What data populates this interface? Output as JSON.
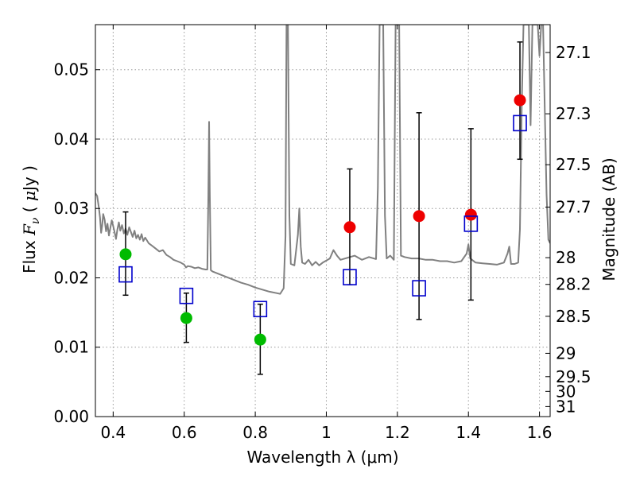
{
  "chart_data": {
    "type": "scatter",
    "xlabel": "Wavelength  λ (μm)",
    "ylabel_parts": [
      "Flux  ",
      "F",
      "ν",
      "  (  ",
      "μ",
      "Jy  )"
    ],
    "ylabel_right": "Magnitude (AB)",
    "xlim": [
      0.35,
      1.63
    ],
    "ylim": [
      0.0,
      0.0565
    ],
    "grid": true,
    "x_ticks": [
      0.4,
      0.6,
      0.8,
      1.0,
      1.2,
      1.4,
      1.6
    ],
    "x_tick_labels": [
      "0.4",
      "0.6",
      "0.8",
      "1",
      "1.2",
      "1.4",
      "1.6"
    ],
    "y_ticks": [
      0.0,
      0.01,
      0.02,
      0.03,
      0.04,
      0.05
    ],
    "y_tick_labels": [
      "0.00",
      "0.01",
      "0.02",
      "0.03",
      "0.04",
      "0.05"
    ],
    "right_ticks": [
      {
        "label": "27.1",
        "value": 27.1
      },
      {
        "label": "27.3",
        "value": 27.3
      },
      {
        "label": "27.5",
        "value": 27.5
      },
      {
        "label": "27.7",
        "value": 27.7
      },
      {
        "label": "28",
        "value": 28.0
      },
      {
        "label": "28.2",
        "value": 28.2
      },
      {
        "label": "28.5",
        "value": 28.5
      },
      {
        "label": "29",
        "value": 29.0
      },
      {
        "label": "29.5",
        "value": 29.5
      },
      {
        "label": "30",
        "value": 30.0
      },
      {
        "label": "31",
        "value": 31.0
      }
    ],
    "colors": {
      "spectrum": "#808080",
      "green": "#00bb00",
      "red": "#ee0000",
      "model": "#0000cc",
      "errorbar": "#000000",
      "grid": "#999999"
    },
    "spectrum": {
      "name": "template spectrum",
      "points": [
        [
          0.35,
          0.0322
        ],
        [
          0.355,
          0.0318
        ],
        [
          0.36,
          0.03
        ],
        [
          0.363,
          0.0287
        ],
        [
          0.366,
          0.0265
        ],
        [
          0.369,
          0.0275
        ],
        [
          0.372,
          0.0292
        ],
        [
          0.376,
          0.0284
        ],
        [
          0.38,
          0.0267
        ],
        [
          0.384,
          0.0278
        ],
        [
          0.388,
          0.0261
        ],
        [
          0.392,
          0.0272
        ],
        [
          0.396,
          0.0283
        ],
        [
          0.4,
          0.0275
        ],
        [
          0.404,
          0.0266
        ],
        [
          0.408,
          0.0256
        ],
        [
          0.412,
          0.027
        ],
        [
          0.416,
          0.028
        ],
        [
          0.42,
          0.0268
        ],
        [
          0.425,
          0.0276
        ],
        [
          0.43,
          0.0264
        ],
        [
          0.435,
          0.0271
        ],
        [
          0.44,
          0.0262
        ],
        [
          0.445,
          0.0273
        ],
        [
          0.45,
          0.0266
        ],
        [
          0.455,
          0.0259
        ],
        [
          0.46,
          0.0268
        ],
        [
          0.465,
          0.0257
        ],
        [
          0.47,
          0.0262
        ],
        [
          0.475,
          0.0255
        ],
        [
          0.48,
          0.0263
        ],
        [
          0.485,
          0.0253
        ],
        [
          0.49,
          0.0258
        ],
        [
          0.5,
          0.025
        ],
        [
          0.51,
          0.0246
        ],
        [
          0.52,
          0.0242
        ],
        [
          0.53,
          0.0238
        ],
        [
          0.54,
          0.024
        ],
        [
          0.55,
          0.0233
        ],
        [
          0.56,
          0.023
        ],
        [
          0.57,
          0.0226
        ],
        [
          0.58,
          0.0224
        ],
        [
          0.59,
          0.0222
        ],
        [
          0.6,
          0.0219
        ],
        [
          0.605,
          0.0215
        ],
        [
          0.61,
          0.0217
        ],
        [
          0.62,
          0.0216
        ],
        [
          0.63,
          0.0214
        ],
        [
          0.64,
          0.0215
        ],
        [
          0.65,
          0.0213
        ],
        [
          0.66,
          0.0212
        ],
        [
          0.665,
          0.0212
        ],
        [
          0.668,
          0.032
        ],
        [
          0.67,
          0.0425
        ],
        [
          0.672,
          0.032
        ],
        [
          0.675,
          0.0211
        ],
        [
          0.68,
          0.0209
        ],
        [
          0.7,
          0.0205
        ],
        [
          0.72,
          0.0201
        ],
        [
          0.74,
          0.0197
        ],
        [
          0.76,
          0.0193
        ],
        [
          0.78,
          0.019
        ],
        [
          0.8,
          0.0186
        ],
        [
          0.82,
          0.0183
        ],
        [
          0.84,
          0.018
        ],
        [
          0.86,
          0.0178
        ],
        [
          0.87,
          0.0177
        ],
        [
          0.88,
          0.0185
        ],
        [
          0.885,
          0.026
        ],
        [
          0.888,
          0.0565
        ],
        [
          0.892,
          0.0565
        ],
        [
          0.896,
          0.029
        ],
        [
          0.9,
          0.022
        ],
        [
          0.91,
          0.0218
        ],
        [
          0.915,
          0.024
        ],
        [
          0.92,
          0.0262
        ],
        [
          0.924,
          0.03
        ],
        [
          0.928,
          0.0245
        ],
        [
          0.932,
          0.0222
        ],
        [
          0.94,
          0.022
        ],
        [
          0.95,
          0.0226
        ],
        [
          0.96,
          0.0218
        ],
        [
          0.97,
          0.0223
        ],
        [
          0.98,
          0.0218
        ],
        [
          0.99,
          0.0222
        ],
        [
          1.0,
          0.0225
        ],
        [
          1.01,
          0.0228
        ],
        [
          1.02,
          0.024
        ],
        [
          1.03,
          0.0232
        ],
        [
          1.04,
          0.0226
        ],
        [
          1.06,
          0.0229
        ],
        [
          1.08,
          0.0232
        ],
        [
          1.1,
          0.0226
        ],
        [
          1.12,
          0.023
        ],
        [
          1.14,
          0.0227
        ],
        [
          1.145,
          0.033
        ],
        [
          1.15,
          0.0565
        ],
        [
          1.16,
          0.0565
        ],
        [
          1.165,
          0.029
        ],
        [
          1.17,
          0.0228
        ],
        [
          1.18,
          0.0232
        ],
        [
          1.19,
          0.0226
        ],
        [
          1.195,
          0.0565
        ],
        [
          1.2,
          0.0565
        ],
        [
          1.205,
          0.0565
        ],
        [
          1.21,
          0.0232
        ],
        [
          1.22,
          0.023
        ],
        [
          1.24,
          0.0228
        ],
        [
          1.26,
          0.0228
        ],
        [
          1.28,
          0.0226
        ],
        [
          1.3,
          0.0226
        ],
        [
          1.32,
          0.0224
        ],
        [
          1.34,
          0.0224
        ],
        [
          1.36,
          0.0222
        ],
        [
          1.38,
          0.0224
        ],
        [
          1.395,
          0.0235
        ],
        [
          1.4,
          0.0248
        ],
        [
          1.405,
          0.0228
        ],
        [
          1.42,
          0.0222
        ],
        [
          1.44,
          0.0221
        ],
        [
          1.46,
          0.022
        ],
        [
          1.48,
          0.0219
        ],
        [
          1.5,
          0.0222
        ],
        [
          1.51,
          0.0235
        ],
        [
          1.515,
          0.0245
        ],
        [
          1.52,
          0.022
        ],
        [
          1.53,
          0.022
        ],
        [
          1.54,
          0.0222
        ],
        [
          1.545,
          0.027
        ],
        [
          1.55,
          0.045
        ],
        [
          1.555,
          0.0565
        ],
        [
          1.57,
          0.0565
        ],
        [
          1.575,
          0.042
        ],
        [
          1.58,
          0.0565
        ],
        [
          1.595,
          0.0565
        ],
        [
          1.6,
          0.052
        ],
        [
          1.605,
          0.0565
        ],
        [
          1.61,
          0.0565
        ],
        [
          1.615,
          0.044
        ],
        [
          1.62,
          0.032
        ],
        [
          1.625,
          0.0255
        ],
        [
          1.63,
          0.025
        ]
      ]
    },
    "series": [
      {
        "name": "observed (green)",
        "color": "green",
        "points": [
          {
            "x": 0.435,
            "y": 0.0234,
            "err_lo": 0.0175,
            "err_hi": 0.0295
          },
          {
            "x": 0.606,
            "y": 0.0142,
            "err_lo": 0.0107,
            "err_hi": 0.0178
          },
          {
            "x": 0.814,
            "y": 0.0111,
            "err_lo": 0.0061,
            "err_hi": 0.0162
          }
        ]
      },
      {
        "name": "observed (red)",
        "color": "red",
        "points": [
          {
            "x": 1.066,
            "y": 0.0273,
            "err_lo": 0.019,
            "err_hi": 0.0357
          },
          {
            "x": 1.261,
            "y": 0.0289,
            "err_lo": 0.014,
            "err_hi": 0.0438
          },
          {
            "x": 1.407,
            "y": 0.0291,
            "err_lo": 0.0168,
            "err_hi": 0.0415
          },
          {
            "x": 1.545,
            "y": 0.0456,
            "err_lo": 0.0371,
            "err_hi": 0.054
          }
        ]
      },
      {
        "name": "model photometry",
        "color": "model",
        "marker": "square",
        "points": [
          {
            "x": 0.435,
            "y": 0.0205
          },
          {
            "x": 0.606,
            "y": 0.0174
          },
          {
            "x": 0.814,
            "y": 0.0155
          },
          {
            "x": 1.066,
            "y": 0.0201
          },
          {
            "x": 1.261,
            "y": 0.0185
          },
          {
            "x": 1.407,
            "y": 0.0278
          },
          {
            "x": 1.545,
            "y": 0.0423
          }
        ]
      }
    ]
  }
}
